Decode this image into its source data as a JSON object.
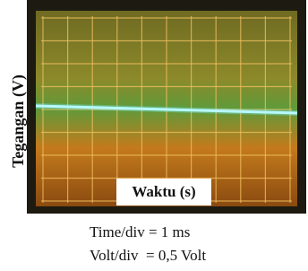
{
  "photo": {
    "y_label": "Tegangan (V)",
    "x_label": "Waktu (s)"
  },
  "caption": {
    "lines": [
      "Time/div = 1 ms",
      "Volt/div  = 0,5 Volt"
    ]
  }
}
